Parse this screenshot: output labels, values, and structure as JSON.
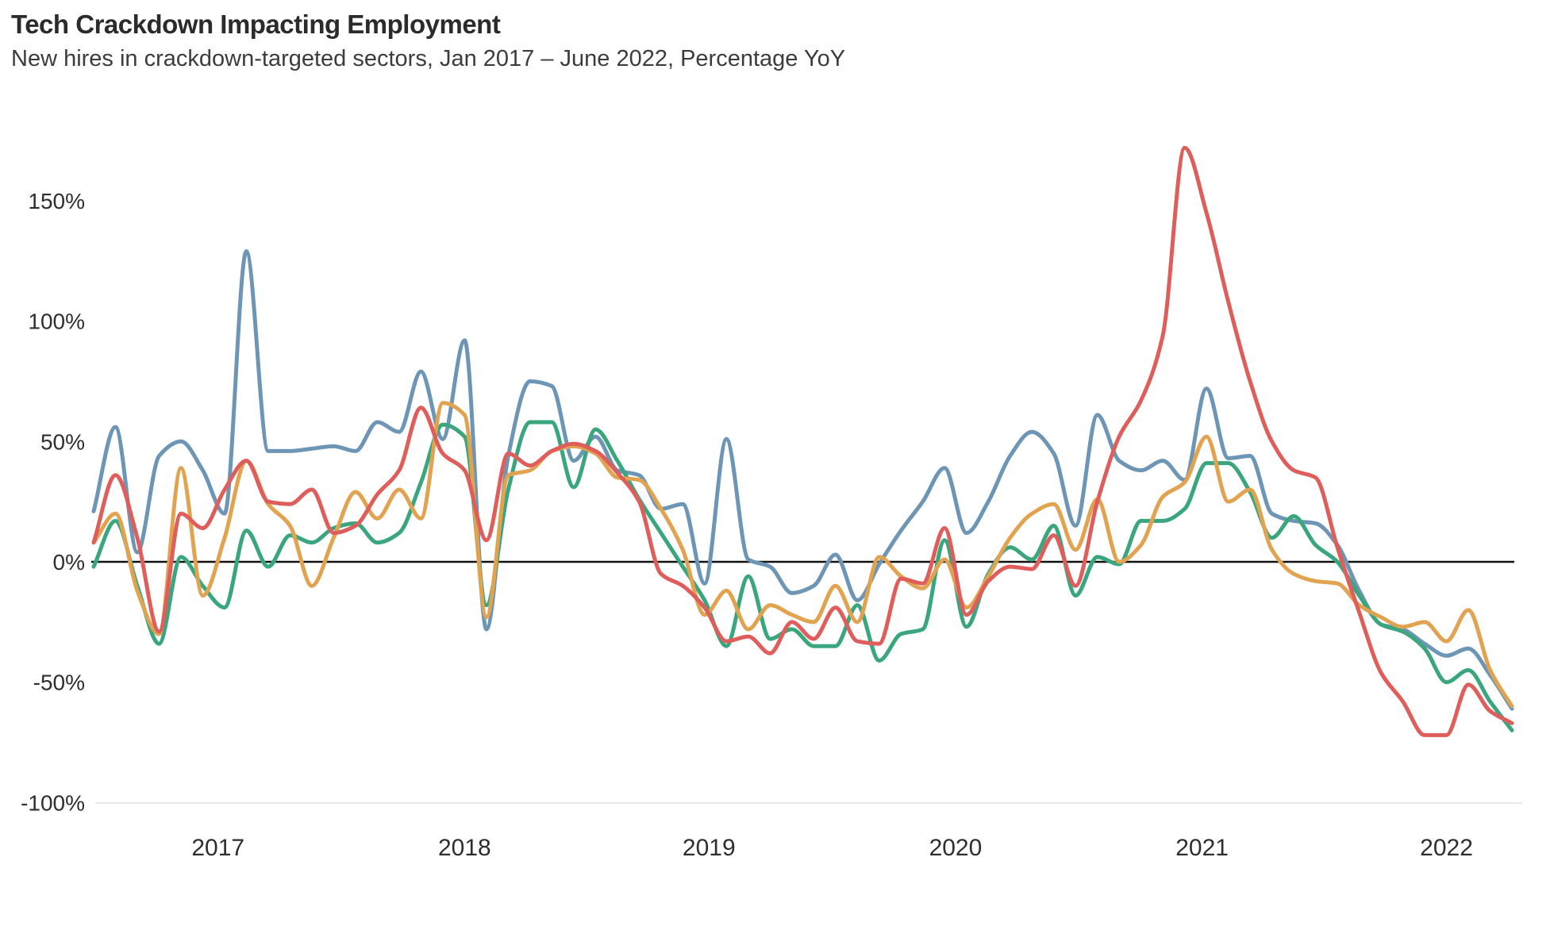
{
  "title": "Tech Crackdown Impacting Employment",
  "subtitle": "New hires in crackdown-targeted sectors, Jan 2017 – June 2022, Percentage YoY",
  "chart_data": {
    "type": "line",
    "x_start": "Jan 2017",
    "x_end": "June 2022",
    "x_frequency": "monthly",
    "points_per_series": 66,
    "ylabel": "Percentage YoY",
    "ylim": [
      -100,
      175
    ],
    "grid": "none (solid black zero line, faint line at -100%)",
    "legend": "none",
    "y_ticks": [
      {
        "label": "150%",
        "value": 150
      },
      {
        "label": "100%",
        "value": 100
      },
      {
        "label": "50%",
        "value": 50
      },
      {
        "label": "0%",
        "value": 0
      },
      {
        "label": "-50%",
        "value": -50
      },
      {
        "label": "-100%",
        "value": -100
      }
    ],
    "x_ticks": [
      {
        "label": "2017",
        "month_index": 5.7
      },
      {
        "label": "2018",
        "month_index": 17.0
      },
      {
        "label": "2019",
        "month_index": 28.2
      },
      {
        "label": "2020",
        "month_index": 39.5
      },
      {
        "label": "2021",
        "month_index": 50.8
      },
      {
        "label": "2022",
        "month_index": 62.0
      }
    ],
    "series": [
      {
        "name": "blue",
        "color": "#6d95b5",
        "values": [
          21,
          56,
          4,
          44,
          50,
          38,
          20,
          129,
          46,
          46,
          47,
          48,
          46,
          58,
          54,
          79,
          51,
          92,
          -28,
          44,
          75,
          73,
          42,
          52,
          38,
          36,
          22,
          24,
          -9,
          51,
          1,
          -2,
          -13,
          -10,
          3,
          -16,
          -1,
          13,
          25,
          39,
          12,
          25,
          44,
          54,
          45,
          15,
          61,
          42,
          38,
          42,
          34,
          72,
          43,
          44,
          20,
          17,
          16,
          7,
          -12,
          -26,
          -28,
          -34,
          -39,
          -36,
          -47,
          -61
        ]
      },
      {
        "name": "green",
        "color": "#3aa67e",
        "values": [
          -2,
          17,
          -10,
          -34,
          2,
          -10,
          -19,
          13,
          -2,
          11,
          8,
          14,
          16,
          8,
          12,
          33,
          57,
          52,
          -18,
          30,
          58,
          58,
          31,
          55,
          42,
          26,
          12,
          -2,
          -16,
          -35,
          -6,
          -32,
          -28,
          -35,
          -35,
          -18,
          -41,
          -30,
          -28,
          9,
          -27,
          -5,
          6,
          1,
          15,
          -14,
          2,
          -1,
          17,
          17,
          22,
          41,
          41,
          29,
          10,
          19,
          7,
          0,
          -14,
          -26,
          -29,
          -36,
          -50,
          -45,
          -58,
          -70
        ]
      },
      {
        "name": "orange",
        "color": "#e2a350",
        "values": [
          8,
          20,
          -12,
          -30,
          39,
          -14,
          10,
          42,
          24,
          15,
          -10,
          10,
          29,
          18,
          30,
          18,
          66,
          61,
          -23,
          36,
          38,
          46,
          48,
          45,
          35,
          34,
          22,
          5,
          -22,
          -12,
          -28,
          -18,
          -22,
          -25,
          -10,
          -25,
          2,
          -6,
          -11,
          1,
          -19,
          -6,
          10,
          20,
          24,
          5,
          26,
          0,
          7,
          27,
          33,
          52,
          25,
          30,
          5,
          -5,
          -8,
          -9,
          -18,
          -23,
          -27,
          -25,
          -33,
          -20,
          -45,
          -60
        ]
      },
      {
        "name": "red",
        "color": "#df5e5b",
        "values": [
          8,
          36,
          10,
          -29,
          20,
          14,
          30,
          42,
          25,
          24,
          30,
          12,
          15,
          28,
          38,
          64,
          45,
          38,
          9,
          45,
          40,
          46,
          49,
          46,
          37,
          25,
          -5,
          -10,
          -19,
          -33,
          -31,
          -38,
          -25,
          -32,
          -19,
          -33,
          -34,
          -7,
          -9,
          14,
          -22,
          -8,
          -2,
          -3,
          11,
          -10,
          25,
          52,
          67,
          94,
          172,
          145,
          108,
          75,
          50,
          38,
          35,
          6,
          -21,
          -46,
          -58,
          -72,
          -72,
          -51,
          -62,
          -67
        ]
      }
    ],
    "zero_line_color": "#111111",
    "bottom_line_color": "#e9e9e9"
  }
}
